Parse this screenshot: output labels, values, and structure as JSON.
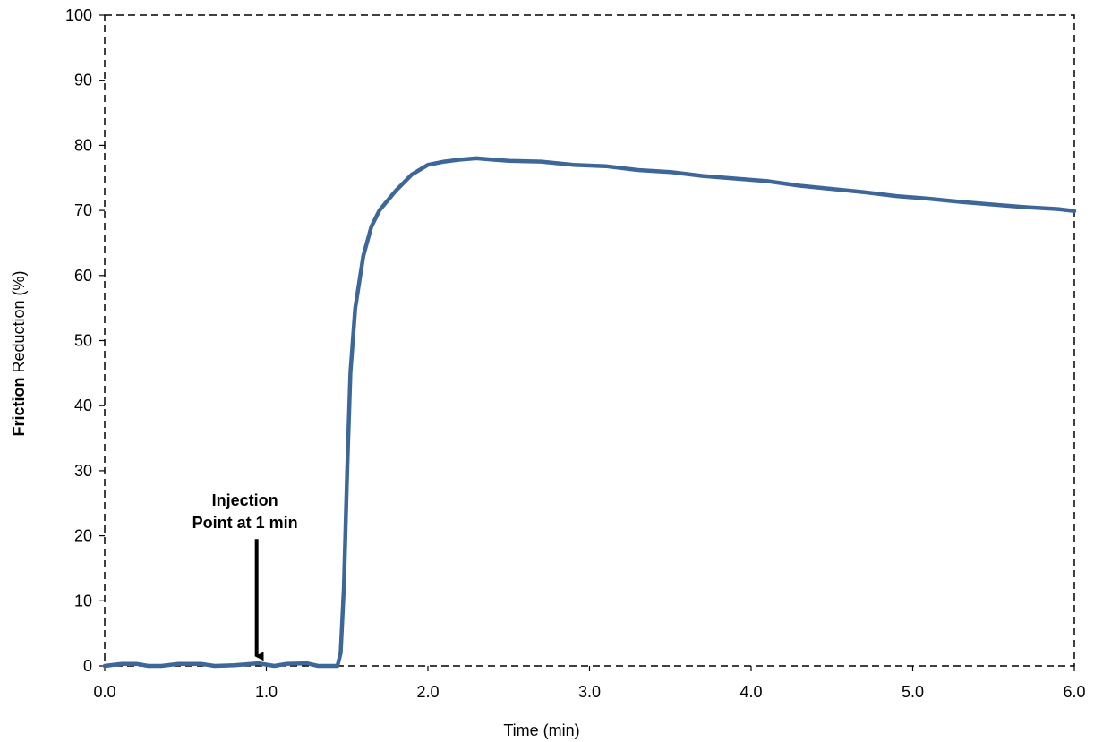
{
  "chart_data": {
    "type": "line",
    "title": "",
    "xlabel": "Time (min)",
    "ylabel_bold": "Friction",
    "ylabel_rest": " Reduction (%)",
    "xlim": [
      0,
      6
    ],
    "ylim": [
      0,
      100
    ],
    "x_ticks": [
      "0.0",
      "1.0",
      "2.0",
      "3.0",
      "4.0",
      "5.0",
      "6.0"
    ],
    "y_ticks": [
      "0",
      "10",
      "20",
      "30",
      "40",
      "50",
      "60",
      "70",
      "80",
      "90",
      "100"
    ],
    "grid": false,
    "legend": "none",
    "frame": "dashed",
    "series": [
      {
        "color": "#3d6699",
        "points": [
          [
            0.0,
            0.0
          ],
          [
            0.1,
            0.3
          ],
          [
            0.2,
            0.3
          ],
          [
            0.27,
            0.0
          ],
          [
            0.35,
            0.0
          ],
          [
            0.45,
            0.3
          ],
          [
            0.6,
            0.3
          ],
          [
            0.68,
            0.0
          ],
          [
            0.8,
            0.1
          ],
          [
            0.95,
            0.4
          ],
          [
            1.05,
            0.0
          ],
          [
            1.12,
            0.3
          ],
          [
            1.25,
            0.4
          ],
          [
            1.32,
            0.0
          ],
          [
            1.44,
            0.0
          ],
          [
            1.46,
            2.0
          ],
          [
            1.48,
            12.0
          ],
          [
            1.5,
            30.0
          ],
          [
            1.52,
            45.0
          ],
          [
            1.55,
            55.0
          ],
          [
            1.6,
            63.0
          ],
          [
            1.65,
            67.5
          ],
          [
            1.7,
            70.0
          ],
          [
            1.8,
            73.0
          ],
          [
            1.9,
            75.5
          ],
          [
            2.0,
            77.0
          ],
          [
            2.1,
            77.5
          ],
          [
            2.2,
            77.8
          ],
          [
            2.3,
            78.0
          ],
          [
            2.4,
            77.8
          ],
          [
            2.5,
            77.6
          ],
          [
            2.7,
            77.5
          ],
          [
            2.9,
            77.0
          ],
          [
            3.1,
            76.8
          ],
          [
            3.3,
            76.2
          ],
          [
            3.5,
            75.9
          ],
          [
            3.7,
            75.3
          ],
          [
            3.9,
            74.9
          ],
          [
            4.1,
            74.5
          ],
          [
            4.3,
            73.8
          ],
          [
            4.5,
            73.3
          ],
          [
            4.7,
            72.8
          ],
          [
            4.9,
            72.2
          ],
          [
            5.1,
            71.8
          ],
          [
            5.3,
            71.3
          ],
          [
            5.5,
            70.9
          ],
          [
            5.7,
            70.5
          ],
          [
            5.9,
            70.2
          ],
          [
            6.0,
            69.9
          ]
        ]
      }
    ],
    "annotations": [
      {
        "lines": [
          "Injection",
          "Point at 1 min"
        ],
        "arrow_from_y": 19.5,
        "arrow_to_x": 0.94,
        "arrow_to_y": 1.2
      }
    ]
  }
}
